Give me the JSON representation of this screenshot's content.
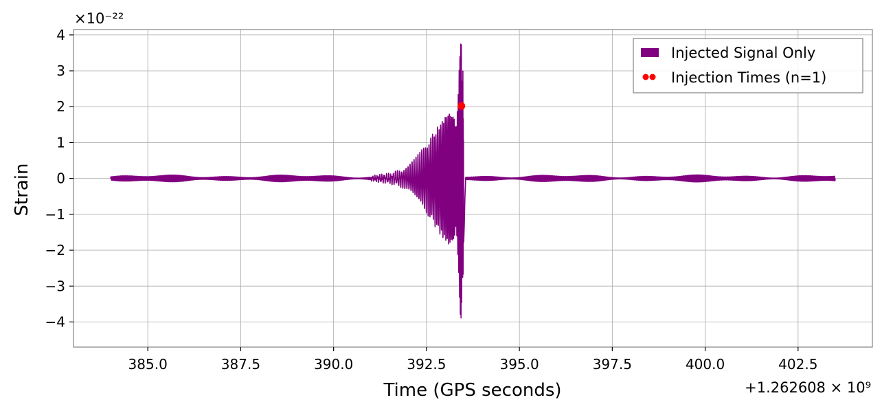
{
  "chart_data": {
    "type": "line",
    "title": "",
    "xlabel": "Time (GPS seconds)",
    "ylabel": "Strain",
    "x_offset_text": "+1.262608 × 10⁹",
    "y_scale_text": "×10⁻²²",
    "xlim": [
      383.0,
      404.5
    ],
    "ylim": [
      -4.7,
      4.15
    ],
    "x_ticks": [
      385.0,
      387.5,
      390.0,
      392.5,
      395.0,
      397.5,
      400.0,
      402.5
    ],
    "x_tick_labels": [
      "385.0",
      "387.5",
      "390.0",
      "392.5",
      "395.0",
      "397.5",
      "400.0",
      "402.5"
    ],
    "y_ticks": [
      -4,
      -3,
      -2,
      -1,
      0,
      1,
      2,
      3,
      4
    ],
    "y_tick_labels": [
      "−4",
      "−3",
      "−2",
      "−1",
      "0",
      "1",
      "2",
      "3",
      "4"
    ],
    "grid": true,
    "legend_position": "top-right",
    "series": [
      {
        "name": "Injected Signal Only",
        "kind": "line",
        "color": "#800080",
        "x_range": [
          384.0,
          403.5
        ],
        "noise_amplitude": 0.1,
        "chirp_start": 391.0,
        "chirp_peak_time": 393.4,
        "envelope": [
          [
            391.0,
            0.05
          ],
          [
            391.5,
            0.12
          ],
          [
            392.0,
            0.35
          ],
          [
            392.5,
            0.95
          ],
          [
            392.8,
            1.35
          ],
          [
            393.0,
            1.7
          ],
          [
            393.2,
            2.2
          ],
          [
            393.35,
            3.0
          ],
          [
            393.4,
            3.7
          ],
          [
            393.45,
            4.3
          ],
          [
            393.55,
            0.25
          ]
        ]
      },
      {
        "name": "Injection Times (n=1)",
        "kind": "scatter",
        "color": "#ff0000",
        "points": [
          [
            393.44,
            2.02
          ]
        ]
      }
    ]
  }
}
